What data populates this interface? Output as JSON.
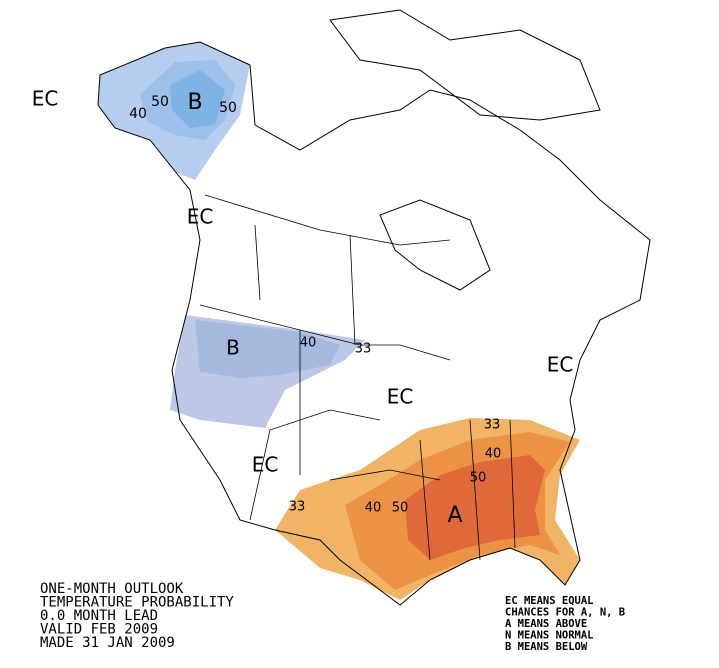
{
  "map_labels": [
    "EC",
    "40",
    "50",
    "B",
    "50",
    "EC",
    "B",
    "40",
    "33",
    "EC",
    "EC",
    "EC",
    "33",
    "40",
    "50",
    "A",
    "50",
    "40",
    "33"
  ],
  "title_lines": [
    "ONE-MONTH OUTLOOK",
    "TEMPERATURE PROBABILITY",
    "0.0 MONTH LEAD",
    "VALID FEB 2009",
    "MADE 31 JAN 2009"
  ],
  "legend_lines": [
    "EC MEANS EQUAL",
    "CHANCES FOR A, N, B",
    "A MEANS ABOVE",
    "N MEANS NORMAL",
    "B MEANS BELOW"
  ]
}
